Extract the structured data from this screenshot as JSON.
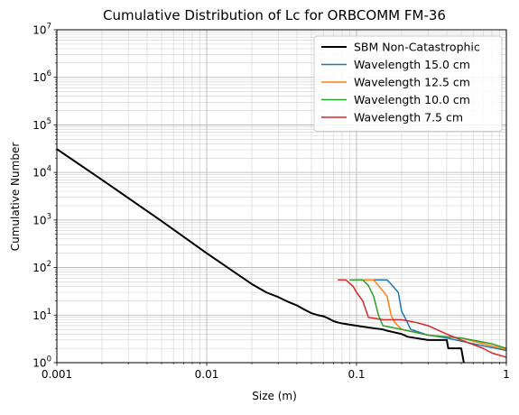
{
  "chart_data": {
    "type": "line",
    "title": "Cumulative Distribution of Lc for ORBCOMM FM-36",
    "xlabel": "Size (m)",
    "ylabel": "Cumulative Number",
    "xscale": "log",
    "yscale": "log",
    "xlim": [
      0.001,
      1
    ],
    "ylim": [
      1,
      10000000
    ],
    "grid": true,
    "legend_position": "top-right",
    "x_ticks": [
      {
        "value": 0.001,
        "label": "0.001"
      },
      {
        "value": 0.01,
        "label": "0.01"
      },
      {
        "value": 0.1,
        "label": "0.1"
      },
      {
        "value": 1,
        "label": "1"
      }
    ],
    "y_ticks": [
      {
        "value": 1,
        "base": "10",
        "exp": "0"
      },
      {
        "value": 10,
        "base": "10",
        "exp": "1"
      },
      {
        "value": 100,
        "base": "10",
        "exp": "2"
      },
      {
        "value": 1000,
        "base": "10",
        "exp": "3"
      },
      {
        "value": 10000,
        "base": "10",
        "exp": "4"
      },
      {
        "value": 100000,
        "base": "10",
        "exp": "5"
      },
      {
        "value": 1000000,
        "base": "10",
        "exp": "6"
      },
      {
        "value": 10000000,
        "base": "10",
        "exp": "7"
      }
    ],
    "series": [
      {
        "name": "SBM Non-Catastrophic",
        "color": "#000000",
        "line_width": 2,
        "step": false,
        "x": [
          0.001,
          0.002,
          0.005,
          0.01,
          0.02,
          0.025,
          0.03,
          0.035,
          0.04,
          0.045,
          0.05,
          0.055,
          0.06,
          0.065,
          0.07,
          0.075,
          0.08,
          0.09,
          0.1,
          0.12,
          0.13,
          0.15,
          0.16,
          0.2,
          0.22,
          0.3,
          0.4,
          0.41,
          0.45,
          0.5,
          0.52
        ],
        "y": [
          31000,
          7000,
          950,
          200,
          45,
          30,
          24,
          19,
          16,
          13,
          11,
          10,
          9.5,
          8.5,
          7.5,
          7,
          6.7,
          6.3,
          6.0,
          5.5,
          5.3,
          5.0,
          4.7,
          4.0,
          3.5,
          3.0,
          3.0,
          2.0,
          2.0,
          2.0,
          1.0
        ]
      },
      {
        "name": "Wavelength 15.0 cm",
        "color": "#1f77b4",
        "line_width": 1.5,
        "step": false,
        "x": [
          0.1,
          0.16,
          0.17,
          0.19,
          0.2,
          0.21,
          0.23,
          0.3,
          0.4,
          0.6,
          1.0
        ],
        "y": [
          55,
          55,
          45,
          30,
          12,
          9,
          5,
          3.8,
          3.3,
          2.5,
          1.8
        ]
      },
      {
        "name": "Wavelength 12.5 cm",
        "color": "#ff7f0e",
        "line_width": 1.5,
        "step": false,
        "x": [
          0.09,
          0.13,
          0.14,
          0.16,
          0.17,
          0.18,
          0.2,
          0.3,
          0.5,
          0.7,
          1.0
        ],
        "y": [
          55,
          55,
          42,
          25,
          10,
          7,
          5,
          3.8,
          3.3,
          2.5,
          1.9
        ]
      },
      {
        "name": "Wavelength 10.0 cm",
        "color": "#2ca02c",
        "line_width": 1.5,
        "step": false,
        "x": [
          0.09,
          0.11,
          0.12,
          0.13,
          0.14,
          0.15,
          0.2,
          0.3,
          0.5,
          0.8,
          1.0
        ],
        "y": [
          55,
          55,
          42,
          25,
          10,
          6,
          5,
          3.8,
          3.3,
          2.5,
          2.0
        ]
      },
      {
        "name": "Wavelength 7.5 cm",
        "color": "#d62728",
        "line_width": 1.5,
        "step": false,
        "x": [
          0.075,
          0.085,
          0.095,
          0.1,
          0.11,
          0.12,
          0.15,
          0.2,
          0.25,
          0.3,
          0.4,
          0.5,
          0.7,
          0.8,
          1.0
        ],
        "y": [
          55,
          55,
          40,
          30,
          20,
          9,
          8,
          8,
          7,
          6,
          4,
          3,
          2,
          1.6,
          1.3
        ]
      }
    ]
  }
}
